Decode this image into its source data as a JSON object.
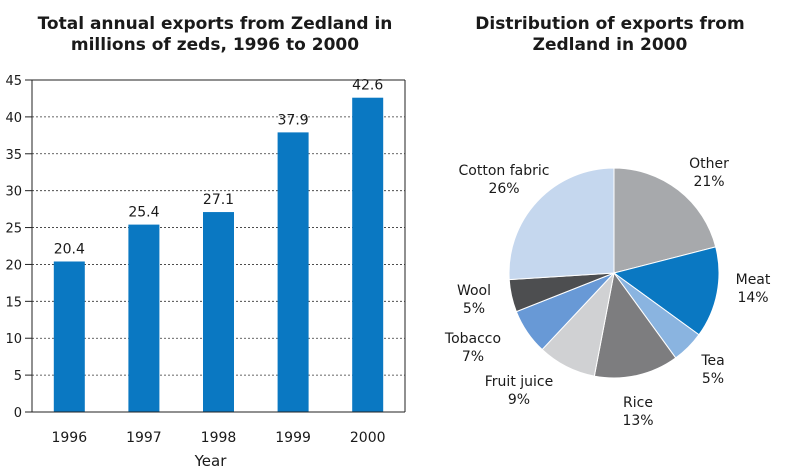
{
  "colors": {
    "bar": "#0a78c2",
    "other": "#a7a9ac",
    "meat": "#0a78c2",
    "tea": "#8ab4e0",
    "rice": "#7d7d7f",
    "fruit_juice": "#d0d1d3",
    "tobacco": "#6899d6",
    "wool": "#4d4e50",
    "cotton_fabric": "#c5d7ee",
    "gridline": "#333333"
  },
  "chart_data": [
    {
      "type": "bar",
      "title": "Total annual exports from Zedland in millions of zeds, 1996 to 2000",
      "title_lines": [
        "Total annual exports from Zedland in",
        "millions of zeds, 1996 to 2000"
      ],
      "categories": [
        "1996",
        "1997",
        "1998",
        "1999",
        "2000"
      ],
      "values": [
        20.4,
        25.4,
        27.1,
        37.9,
        42.6
      ],
      "value_labels": [
        "20.4",
        "25.4",
        "27.1",
        "37.9",
        "42.6"
      ],
      "xlabel": "Year",
      "ylabel": "",
      "ylim": [
        0,
        45
      ],
      "yticks": [
        "0",
        "5",
        "10",
        "15",
        "20",
        "25",
        "30",
        "35",
        "40",
        "45"
      ],
      "grid": true
    },
    {
      "type": "pie",
      "title": "Distribution of exports from Zedland in 2000",
      "title_lines": [
        "Distribution of exports from",
        "Zedland in 2000"
      ],
      "slices": [
        {
          "name": "Other",
          "value": 21,
          "label": "21%",
          "color": "#a7a9ac"
        },
        {
          "name": "Meat",
          "value": 14,
          "label": "14%",
          "color": "#0a78c2"
        },
        {
          "name": "Tea",
          "value": 5,
          "label": "5%",
          "color": "#8ab4e0"
        },
        {
          "name": "Rice",
          "value": 13,
          "label": "13%",
          "color": "#7d7d7f"
        },
        {
          "name": "Fruit juice",
          "value": 9,
          "label": "9%",
          "color": "#d0d1d3"
        },
        {
          "name": "Tobacco",
          "value": 7,
          "label": "7%",
          "color": "#6899d6"
        },
        {
          "name": "Wool",
          "value": 5,
          "label": "5%",
          "color": "#4d4e50"
        },
        {
          "name": "Cotton fabric",
          "value": 26,
          "label": "26%",
          "color": "#c5d7ee"
        }
      ]
    }
  ]
}
